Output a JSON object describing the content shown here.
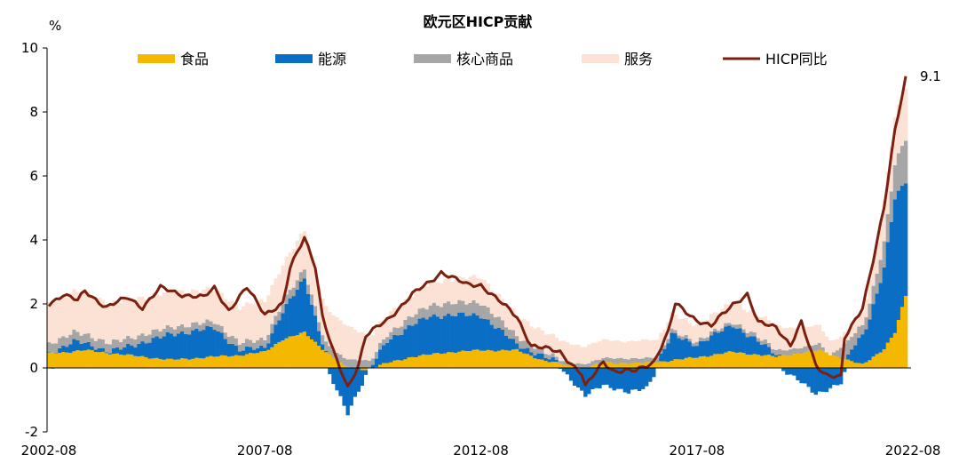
{
  "chart_data": {
    "type": "bar",
    "title": "欧元区HICP贡献",
    "ylabel": "%",
    "ylim": [
      -2,
      10
    ],
    "yticks": [
      -2,
      0,
      2,
      4,
      6,
      8,
      10
    ],
    "x_start": "2002-08",
    "x_end": "2022-06",
    "xticks": [
      "2002-08",
      "2007-08",
      "2012-08",
      "2017-08",
      "2022-08"
    ],
    "grid": false,
    "legend_position": "top",
    "series": [
      {
        "name": "食品",
        "color": "#F5B800",
        "kind": "stacked-bar"
      },
      {
        "name": "能源",
        "color": "#0A6EC4",
        "kind": "stacked-bar"
      },
      {
        "name": "核心商品",
        "color": "#A6A6A6",
        "kind": "stacked-bar"
      },
      {
        "name": "服务",
        "color": "#FBE2D5",
        "kind": "stacked-bar"
      },
      {
        "name": "HICP同比",
        "color": "#7B1F0E",
        "kind": "line"
      }
    ],
    "keypoints": {
      "food": [
        [
          "2002-08",
          0.45
        ],
        [
          "2003-06",
          0.55
        ],
        [
          "2004-06",
          0.4
        ],
        [
          "2005-06",
          0.25
        ],
        [
          "2006-06",
          0.35
        ],
        [
          "2007-01",
          0.4
        ],
        [
          "2007-08",
          0.5
        ],
        [
          "2008-01",
          0.9
        ],
        [
          "2008-07",
          1.1
        ],
        [
          "2008-12",
          0.6
        ],
        [
          "2009-06",
          0.05
        ],
        [
          "2009-12",
          -0.05
        ],
        [
          "2010-06",
          0.15
        ],
        [
          "2011-01",
          0.35
        ],
        [
          "2011-12",
          0.5
        ],
        [
          "2012-08",
          0.55
        ],
        [
          "2013-06",
          0.55
        ],
        [
          "2014-01",
          0.25
        ],
        [
          "2014-12",
          -0.02
        ],
        [
          "2015-06",
          0.15
        ],
        [
          "2016-06",
          0.15
        ],
        [
          "2017-06",
          0.3
        ],
        [
          "2018-06",
          0.5
        ],
        [
          "2019-06",
          0.35
        ],
        [
          "2020-06",
          0.55
        ],
        [
          "2020-12",
          0.3
        ],
        [
          "2021-06",
          0.1
        ],
        [
          "2021-12",
          0.6
        ],
        [
          "2022-03",
          1.1
        ],
        [
          "2022-06",
          2.25
        ]
      ],
      "energy": [
        [
          "2002-08",
          0.0
        ],
        [
          "2003-03",
          0.3
        ],
        [
          "2004-01",
          0.05
        ],
        [
          "2005-06",
          0.8
        ],
        [
          "2006-06",
          0.9
        ],
        [
          "2007-01",
          0.15
        ],
        [
          "2007-08",
          0.15
        ],
        [
          "2008-07",
          1.7
        ],
        [
          "2008-12",
          0.2
        ],
        [
          "2009-07",
          -1.4
        ],
        [
          "2009-12",
          -0.2
        ],
        [
          "2010-06",
          0.7
        ],
        [
          "2011-06",
          1.2
        ],
        [
          "2012-08",
          1.1
        ],
        [
          "2013-06",
          0.2
        ],
        [
          "2014-06",
          0.05
        ],
        [
          "2015-01",
          -0.9
        ],
        [
          "2015-06",
          -0.5
        ],
        [
          "2016-01",
          -0.8
        ],
        [
          "2016-06",
          -0.6
        ],
        [
          "2017-01",
          0.8
        ],
        [
          "2017-08",
          0.4
        ],
        [
          "2018-06",
          0.85
        ],
        [
          "2019-06",
          0.1
        ],
        [
          "2020-05",
          -0.8
        ],
        [
          "2020-12",
          -0.5
        ],
        [
          "2021-03",
          0.4
        ],
        [
          "2021-08",
          1.3
        ],
        [
          "2021-12",
          2.5
        ],
        [
          "2022-03",
          4.2
        ],
        [
          "2022-06",
          3.6
        ]
      ],
      "core": [
        [
          "2002-08",
          0.3
        ],
        [
          "2004-06",
          0.25
        ],
        [
          "2006-06",
          0.2
        ],
        [
          "2008-07",
          0.3
        ],
        [
          "2009-06",
          0.25
        ],
        [
          "2010-06",
          0.2
        ],
        [
          "2011-06",
          0.35
        ],
        [
          "2012-08",
          0.4
        ],
        [
          "2013-06",
          0.25
        ],
        [
          "2014-06",
          0.1
        ],
        [
          "2015-06",
          0.15
        ],
        [
          "2016-06",
          0.15
        ],
        [
          "2017-06",
          0.1
        ],
        [
          "2018-06",
          0.1
        ],
        [
          "2019-06",
          0.15
        ],
        [
          "2020-06",
          0.2
        ],
        [
          "2020-09",
          -0.05
        ],
        [
          "2021-01",
          0.5
        ],
        [
          "2021-06",
          0.3
        ],
        [
          "2021-12",
          0.8
        ],
        [
          "2022-06",
          1.35
        ]
      ],
      "services": [
        [
          "2002-08",
          1.25
        ],
        [
          "2003-06",
          1.3
        ],
        [
          "2004-06",
          1.2
        ],
        [
          "2005-06",
          1.1
        ],
        [
          "2006-06",
          1.0
        ],
        [
          "2007-06",
          1.2
        ],
        [
          "2008-07",
          1.2
        ],
        [
          "2009-06",
          1.05
        ],
        [
          "2010-06",
          0.6
        ],
        [
          "2011-06",
          0.7
        ],
        [
          "2012-08",
          0.8
        ],
        [
          "2013-06",
          0.65
        ],
        [
          "2014-06",
          0.6
        ],
        [
          "2015-06",
          0.55
        ],
        [
          "2016-06",
          0.55
        ],
        [
          "2017-06",
          0.5
        ],
        [
          "2018-06",
          0.6
        ],
        [
          "2019-06",
          0.75
        ],
        [
          "2020-06",
          0.55
        ],
        [
          "2020-12",
          0.35
        ],
        [
          "2021-06",
          0.4
        ],
        [
          "2021-12",
          1.3
        ],
        [
          "2022-06",
          1.6
        ]
      ],
      "hicp": [
        [
          "2002-08",
          2.0
        ],
        [
          "2002-12",
          2.3
        ],
        [
          "2003-04",
          2.1
        ],
        [
          "2003-06",
          2.4
        ],
        [
          "2003-12",
          1.9
        ],
        [
          "2004-06",
          2.2
        ],
        [
          "2004-10",
          1.9
        ],
        [
          "2005-03",
          2.5
        ],
        [
          "2005-09",
          2.3
        ],
        [
          "2006-03",
          2.2
        ],
        [
          "2006-06",
          2.5
        ],
        [
          "2006-10",
          1.8
        ],
        [
          "2007-03",
          2.5
        ],
        [
          "2007-08",
          1.7
        ],
        [
          "2008-01",
          2.0
        ],
        [
          "2008-03",
          3.1
        ],
        [
          "2008-07",
          4.1
        ],
        [
          "2008-10",
          3.2
        ],
        [
          "2008-12",
          1.6
        ],
        [
          "2009-03",
          0.5
        ],
        [
          "2009-07",
          -0.6
        ],
        [
          "2009-10",
          0.1
        ],
        [
          "2009-12",
          1.0
        ],
        [
          "2010-06",
          1.5
        ],
        [
          "2011-01",
          2.3
        ],
        [
          "2011-06",
          2.7
        ],
        [
          "2011-09",
          3.0
        ],
        [
          "2012-04",
          2.6
        ],
        [
          "2012-08",
          2.6
        ],
        [
          "2012-12",
          2.2
        ],
        [
          "2013-06",
          1.6
        ],
        [
          "2013-10",
          0.7
        ],
        [
          "2014-06",
          0.5
        ],
        [
          "2014-12",
          -0.2
        ],
        [
          "2015-01",
          -0.6
        ],
        [
          "2015-06",
          0.2
        ],
        [
          "2015-09",
          -0.1
        ],
        [
          "2016-03",
          -0.1
        ],
        [
          "2016-08",
          0.2
        ],
        [
          "2016-12",
          1.1
        ],
        [
          "2017-02",
          2.0
        ],
        [
          "2017-08",
          1.5
        ],
        [
          "2017-12",
          1.3
        ],
        [
          "2018-06",
          2.0
        ],
        [
          "2018-10",
          2.3
        ],
        [
          "2019-01",
          1.4
        ],
        [
          "2019-06",
          1.3
        ],
        [
          "2019-10",
          0.7
        ],
        [
          "2020-01",
          1.4
        ],
        [
          "2020-05",
          0.1
        ],
        [
          "2020-08",
          -0.2
        ],
        [
          "2020-12",
          -0.3
        ],
        [
          "2021-01",
          0.9
        ],
        [
          "2021-06",
          1.9
        ],
        [
          "2021-09",
          3.4
        ],
        [
          "2021-12",
          5.0
        ],
        [
          "2022-03",
          7.4
        ],
        [
          "2022-06",
          9.1
        ]
      ]
    },
    "last_value_label": "9.1"
  }
}
